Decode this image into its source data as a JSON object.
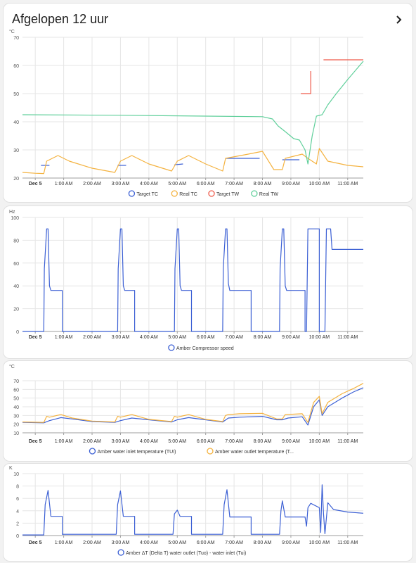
{
  "card": {
    "title": "Afgelopen 12 uur",
    "more_icon": "chevron-right-icon"
  },
  "colors": {
    "blue": "#3b5fd4",
    "orange": "#f4b23f",
    "red": "#ef5a4a",
    "green": "#5fcf9a",
    "grid": "#e6e6e6",
    "axis": "#9e9e9e"
  },
  "x_ticks": [
    "Dec 5",
    "1:00 AM",
    "2:00 AM",
    "3:00 AM",
    "4:00 AM",
    "5:00 AM",
    "6:00 AM",
    "7:00 AM",
    "8:00 AM",
    "9:00 AM",
    "10:00 AM",
    "11:00 AM"
  ],
  "chart_data": [
    {
      "type": "line",
      "unit": "°C",
      "ylim": [
        20,
        70
      ],
      "yticks": [
        20,
        30,
        40,
        50,
        60,
        70
      ],
      "x_range": [
        -0.45,
        11.55
      ],
      "legend": "bottom",
      "series": [
        {
          "name": "Target TC",
          "color": "#3b5fd4",
          "segments": [
            [
              [
                0.2,
                24.5
              ],
              [
                0.5,
                24.5
              ]
            ],
            [
              [
                2.9,
                24.5
              ],
              [
                3.2,
                24.5
              ]
            ],
            [
              [
                4.9,
                24.7
              ],
              [
                5.2,
                25
              ]
            ],
            [
              [
                6.7,
                27
              ],
              [
                7.9,
                27
              ]
            ],
            [
              [
                8.7,
                26.5
              ],
              [
                9.3,
                26.5
              ]
            ]
          ]
        },
        {
          "name": "Real TC",
          "color": "#f4b23f",
          "segments": [
            [
              [
                -0.45,
                22
              ],
              [
                0,
                21.7
              ],
              [
                0.3,
                21.6
              ],
              [
                0.4,
                26
              ],
              [
                0.6,
                27
              ],
              [
                0.8,
                28
              ],
              [
                1.2,
                26
              ],
              [
                2.0,
                23.5
              ],
              [
                2.8,
                22
              ],
              [
                3.0,
                26
              ],
              [
                3.4,
                28
              ],
              [
                4.0,
                25
              ],
              [
                4.8,
                22.5
              ],
              [
                5.0,
                26
              ],
              [
                5.4,
                28
              ],
              [
                6.0,
                25
              ],
              [
                6.6,
                22.5
              ],
              [
                6.7,
                27
              ],
              [
                7.5,
                28.5
              ],
              [
                8.0,
                29.5
              ],
              [
                8.4,
                23
              ],
              [
                8.7,
                23
              ],
              [
                8.8,
                27
              ],
              [
                9.4,
                28.5
              ],
              [
                9.6,
                27
              ],
              [
                9.9,
                25
              ],
              [
                10.0,
                30.5
              ],
              [
                10.3,
                26
              ],
              [
                11.0,
                24.5
              ],
              [
                11.55,
                24
              ]
            ]
          ]
        },
        {
          "name": "Target TW",
          "color": "#ef5a4a",
          "segments": [
            [
              [
                9.35,
                50
              ],
              [
                9.7,
                50
              ],
              [
                9.7,
                58
              ]
            ],
            [
              [
                10.15,
                62
              ],
              [
                11.55,
                62
              ]
            ]
          ]
        },
        {
          "name": "Real TW",
          "color": "#5fcf9a",
          "segments": [
            [
              [
                -0.45,
                42.5
              ],
              [
                3,
                42.3
              ],
              [
                6,
                42
              ],
              [
                8.0,
                41.8
              ],
              [
                8.35,
                41
              ],
              [
                8.55,
                38.5
              ],
              [
                8.8,
                36.5
              ],
              [
                9.1,
                34
              ],
              [
                9.3,
                33.5
              ],
              [
                9.5,
                30
              ],
              [
                9.6,
                25
              ],
              [
                9.75,
                35
              ],
              [
                9.9,
                42
              ],
              [
                10.1,
                42.5
              ],
              [
                10.3,
                46
              ],
              [
                10.6,
                50
              ],
              [
                11.0,
                55
              ],
              [
                11.55,
                61.5
              ]
            ]
          ]
        }
      ]
    },
    {
      "type": "line",
      "unit": "Hz",
      "ylim": [
        0,
        100
      ],
      "yticks": [
        0,
        20,
        40,
        60,
        80,
        100
      ],
      "x_range": [
        -0.45,
        11.55
      ],
      "legend": "bottom",
      "series": [
        {
          "name": "Amber Compressor speed",
          "color": "#3b5fd4",
          "segments": [
            [
              [
                -0.45,
                0
              ],
              [
                0.3,
                0
              ],
              [
                0.32,
                55
              ],
              [
                0.4,
                90
              ],
              [
                0.45,
                90
              ],
              [
                0.5,
                40
              ],
              [
                0.55,
                36
              ],
              [
                0.95,
                36
              ],
              [
                0.95,
                0
              ],
              [
                2.9,
                0
              ],
              [
                2.92,
                55
              ],
              [
                3.0,
                90
              ],
              [
                3.05,
                90
              ],
              [
                3.1,
                40
              ],
              [
                3.15,
                36
              ],
              [
                3.5,
                36
              ],
              [
                3.5,
                0
              ],
              [
                4.9,
                0
              ],
              [
                4.92,
                55
              ],
              [
                5.0,
                90
              ],
              [
                5.05,
                90
              ],
              [
                5.1,
                40
              ],
              [
                5.15,
                36
              ],
              [
                5.5,
                36
              ],
              [
                5.5,
                0
              ],
              [
                6.6,
                0
              ],
              [
                6.62,
                55
              ],
              [
                6.7,
                90
              ],
              [
                6.75,
                90
              ],
              [
                6.8,
                42
              ],
              [
                6.85,
                36
              ],
              [
                7.6,
                36
              ],
              [
                7.6,
                0
              ],
              [
                8.6,
                0
              ],
              [
                8.62,
                55
              ],
              [
                8.7,
                90
              ],
              [
                8.75,
                90
              ],
              [
                8.8,
                40
              ],
              [
                8.85,
                36
              ],
              [
                9.5,
                36
              ],
              [
                9.5,
                0
              ],
              [
                9.55,
                0
              ],
              [
                9.6,
                90
              ],
              [
                10.0,
                90
              ],
              [
                10.0,
                0
              ],
              [
                10.2,
                0
              ],
              [
                10.25,
                90
              ],
              [
                10.4,
                90
              ],
              [
                10.45,
                72
              ],
              [
                11.55,
                72
              ]
            ]
          ]
        }
      ]
    },
    {
      "type": "line",
      "unit": "°C",
      "ylim": [
        10,
        70
      ],
      "yticks": [
        10,
        20,
        30,
        40,
        50,
        60,
        70
      ],
      "x_range": [
        -0.45,
        11.55
      ],
      "legend": "bottom",
      "series": [
        {
          "name": "Amber water inlet temperature (TUI)",
          "color": "#3b5fd4",
          "segments": [
            [
              [
                -0.45,
                22
              ],
              [
                0.3,
                21.5
              ],
              [
                0.5,
                24
              ],
              [
                0.9,
                27.5
              ],
              [
                1.3,
                26
              ],
              [
                2.0,
                23
              ],
              [
                2.8,
                22
              ],
              [
                3.0,
                24
              ],
              [
                3.4,
                27
              ],
              [
                4.0,
                25
              ],
              [
                4.8,
                22.5
              ],
              [
                5.0,
                25
              ],
              [
                5.4,
                27.5
              ],
              [
                6.0,
                25
              ],
              [
                6.6,
                22.5
              ],
              [
                6.8,
                27
              ],
              [
                7.2,
                28
              ],
              [
                8.0,
                29
              ],
              [
                8.5,
                25
              ],
              [
                8.7,
                25
              ],
              [
                8.9,
                27
              ],
              [
                9.4,
                28.5
              ],
              [
                9.6,
                19
              ],
              [
                9.8,
                40
              ],
              [
                10.0,
                48
              ],
              [
                10.1,
                30
              ],
              [
                10.3,
                40
              ],
              [
                10.8,
                50
              ],
              [
                11.2,
                57
              ],
              [
                11.55,
                62
              ]
            ]
          ]
        },
        {
          "name": "Amber water outlet temperature (T...",
          "color": "#f4b23f",
          "segments": [
            [
              [
                -0.45,
                22.5
              ],
              [
                0.3,
                22
              ],
              [
                0.4,
                29
              ],
              [
                0.5,
                28
              ],
              [
                0.9,
                31
              ],
              [
                1.3,
                27
              ],
              [
                2.0,
                23.5
              ],
              [
                2.8,
                22.5
              ],
              [
                2.9,
                29
              ],
              [
                3.0,
                28
              ],
              [
                3.4,
                31
              ],
              [
                4.0,
                25.5
              ],
              [
                4.8,
                23
              ],
              [
                4.9,
                29
              ],
              [
                5.0,
                28
              ],
              [
                5.4,
                31
              ],
              [
                6.0,
                25.5
              ],
              [
                6.6,
                23
              ],
              [
                6.7,
                30
              ],
              [
                6.8,
                31
              ],
              [
                7.2,
                32
              ],
              [
                8.0,
                32.5
              ],
              [
                8.5,
                26
              ],
              [
                8.7,
                26
              ],
              [
                8.8,
                31
              ],
              [
                9.4,
                32
              ],
              [
                9.6,
                22
              ],
              [
                9.8,
                45
              ],
              [
                10.0,
                52
              ],
              [
                10.1,
                32
              ],
              [
                10.3,
                45
              ],
              [
                10.8,
                55
              ],
              [
                11.2,
                61
              ],
              [
                11.55,
                67
              ]
            ]
          ]
        }
      ]
    },
    {
      "type": "line",
      "unit": "K",
      "ylim": [
        0,
        10
      ],
      "yticks": [
        0,
        2,
        4,
        6,
        8,
        10
      ],
      "x_range": [
        -0.45,
        11.55
      ],
      "legend": "bottom",
      "series": [
        {
          "name": "Amber ΔT (Delta T) water outlet (Tuo) - water inlet (Tui)",
          "color": "#3b5fd4",
          "segments": [
            [
              [
                -0.45,
                0.1
              ],
              [
                0.3,
                0.1
              ],
              [
                0.35,
                5
              ],
              [
                0.45,
                7.3
              ],
              [
                0.55,
                3.1
              ],
              [
                0.95,
                3.1
              ],
              [
                0.95,
                0.2
              ],
              [
                2.85,
                0.2
              ],
              [
                2.9,
                5
              ],
              [
                3.0,
                7.2
              ],
              [
                3.1,
                3.1
              ],
              [
                3.5,
                3.1
              ],
              [
                3.5,
                0.2
              ],
              [
                4.85,
                0.2
              ],
              [
                4.9,
                3.5
              ],
              [
                5.0,
                4.1
              ],
              [
                5.1,
                3.1
              ],
              [
                5.5,
                3.1
              ],
              [
                5.5,
                0.2
              ],
              [
                6.6,
                0.2
              ],
              [
                6.65,
                5
              ],
              [
                6.75,
                7.4
              ],
              [
                6.85,
                3.0
              ],
              [
                7.6,
                3.0
              ],
              [
                7.6,
                0.2
              ],
              [
                8.6,
                0.2
              ],
              [
                8.65,
                4
              ],
              [
                8.7,
                5.6
              ],
              [
                8.8,
                3.0
              ],
              [
                9.5,
                3.0
              ],
              [
                9.55,
                1.5
              ],
              [
                9.6,
                4.5
              ],
              [
                9.7,
                5.2
              ],
              [
                10.0,
                4.5
              ],
              [
                10.05,
                0.5
              ],
              [
                10.1,
                8.2
              ],
              [
                10.15,
                3.5
              ],
              [
                10.2,
                0.3
              ],
              [
                10.3,
                5.3
              ],
              [
                10.5,
                4.2
              ],
              [
                11.0,
                3.8
              ],
              [
                11.55,
                3.6
              ]
            ]
          ]
        }
      ]
    }
  ]
}
